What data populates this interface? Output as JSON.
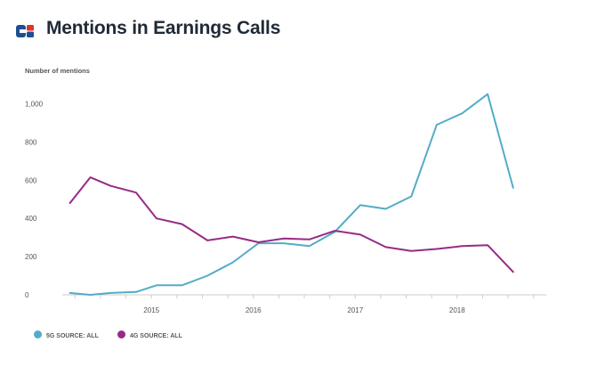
{
  "title": "Mentions in Earnings Calls",
  "colors": {
    "series_5g": "#53acc8",
    "series_4g": "#962b84",
    "logo_blue": "#1d4f91",
    "logo_red": "#e2332a",
    "title": "#1f2a36"
  },
  "icons": {
    "logo": "logo-icon"
  },
  "chart_data": {
    "type": "line",
    "title": "Mentions in Earnings Calls",
    "ylabel": "Number of mentions",
    "xlabel": "",
    "ylim": [
      0,
      1100
    ],
    "yticks": [
      0,
      200,
      400,
      600,
      800,
      1000
    ],
    "ytick_labels": [
      "0",
      "200",
      "400",
      "600",
      "800",
      "1,000"
    ],
    "xlim": [
      2014.125,
      2018.875
    ],
    "xticks": [
      2014.25,
      2014.5,
      2014.75,
      2015,
      2015.25,
      2015.5,
      2015.75,
      2016,
      2016.25,
      2016.5,
      2016.75,
      2017,
      2017.25,
      2017.5,
      2017.75,
      2018,
      2018.25,
      2018.5,
      2018.75
    ],
    "xtick_labels": [
      {
        "x": 2015,
        "label": "2015"
      },
      {
        "x": 2016,
        "label": "2016"
      },
      {
        "x": 2017,
        "label": "2017"
      },
      {
        "x": 2018,
        "label": "2018"
      }
    ],
    "x": [
      2014.2,
      2014.4,
      2014.6,
      2014.85,
      2015.05,
      2015.3,
      2015.55,
      2015.8,
      2016.05,
      2016.3,
      2016.55,
      2016.8,
      2017.05,
      2017.3,
      2017.55,
      2017.8,
      2018.05,
      2018.3,
      2018.55,
      2018.8
    ],
    "series": [
      {
        "name": "5G SOURCE: ALL",
        "color": "#53acc8",
        "values": [
          10,
          0,
          10,
          15,
          50,
          50,
          100,
          170,
          270,
          270,
          255,
          330,
          470,
          450,
          515,
          890,
          950,
          1050,
          560,
          null
        ]
      },
      {
        "name": "4G SOURCE: ALL",
        "color": "#962b84",
        "values": [
          480,
          615,
          570,
          535,
          400,
          370,
          285,
          305,
          275,
          295,
          290,
          335,
          315,
          250,
          230,
          240,
          255,
          260,
          120,
          null
        ]
      }
    ],
    "grid": false,
    "legend_position": "bottom-left"
  }
}
